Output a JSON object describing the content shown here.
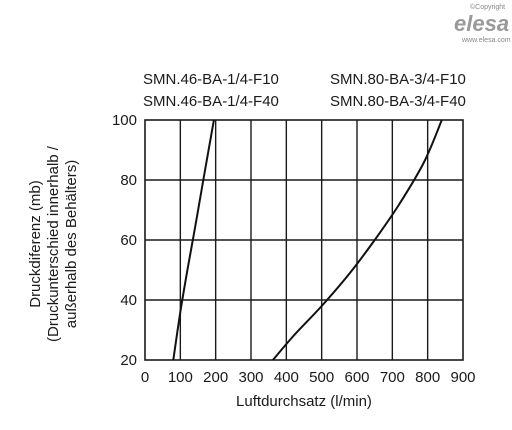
{
  "watermark": {
    "copyright": "©Copyright",
    "brand": "elesa",
    "url": "www.elesa.com"
  },
  "chart_data": {
    "type": "line",
    "xlabel": "Luftdurchsatz (l/min)",
    "ylabel_lines": [
      "Druckdiferenz (mb)",
      "(Druckunterschied innerhalb /",
      "außerhalb des Behälters)"
    ],
    "xlim": [
      0,
      900
    ],
    "ylim": [
      20,
      100
    ],
    "x_ticks": [
      0,
      100,
      200,
      300,
      400,
      500,
      600,
      700,
      800,
      900
    ],
    "y_ticks": [
      20,
      40,
      60,
      80,
      100
    ],
    "grid": true,
    "series": [
      {
        "labels": [
          "SMN.46-BA-1/4-F10",
          "SMN.46-BA-1/4-F40"
        ],
        "points": [
          [
            80,
            20
          ],
          [
            100,
            36
          ],
          [
            120,
            50
          ],
          [
            143,
            65
          ],
          [
            165,
            80
          ],
          [
            195,
            100
          ]
        ]
      },
      {
        "labels": [
          "SMN.80-BA-3/4-F10",
          "SMN.80-BA-3/4-F40"
        ],
        "points": [
          [
            362,
            20
          ],
          [
            420,
            28
          ],
          [
            500,
            38
          ],
          [
            580,
            49
          ],
          [
            650,
            60
          ],
          [
            720,
            72
          ],
          [
            790,
            86
          ],
          [
            840,
            100
          ]
        ]
      }
    ]
  }
}
